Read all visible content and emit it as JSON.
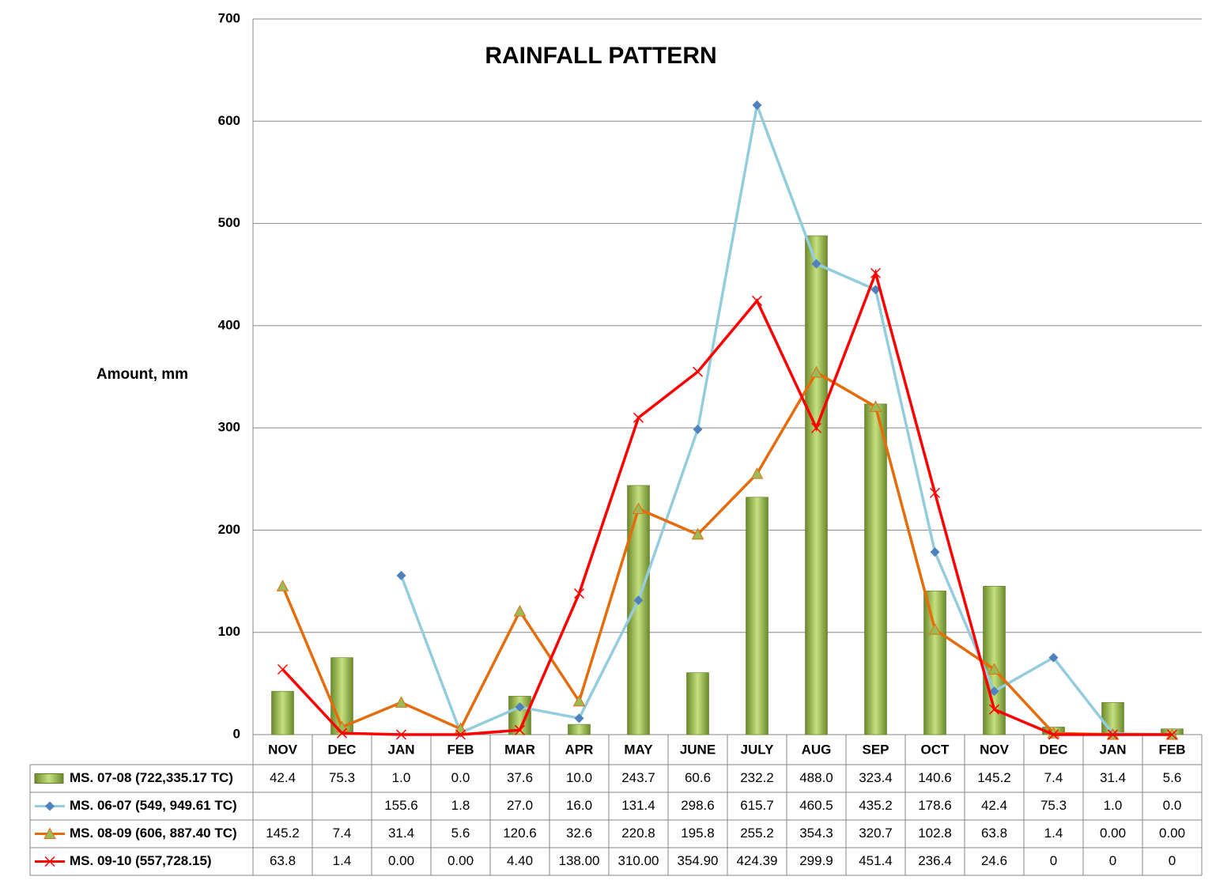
{
  "chart_data": {
    "type": "bar-line-table",
    "title": "RAINFALL PATTERN",
    "y_label": "Amount, mm",
    "categories": [
      "NOV",
      "DEC",
      "JAN",
      "FEB",
      "MAR",
      "APR",
      "MAY",
      "JUNE",
      "JULY",
      "AUG",
      "SEP",
      "OCT",
      "NOV",
      "DEC",
      "JAN",
      "FEB"
    ],
    "ylim": [
      0,
      700
    ],
    "yticks": [
      0,
      100,
      200,
      300,
      400,
      500,
      600,
      700
    ],
    "grid": true,
    "series": [
      {
        "name": "MS. 07-08 (722,335.17 TC)",
        "type": "bar",
        "color": "#9bbb59",
        "values": [
          42.4,
          75.3,
          1.0,
          0.0,
          37.6,
          10.0,
          243.7,
          60.6,
          232.2,
          488.0,
          323.4,
          140.6,
          145.2,
          7.4,
          31.4,
          5.6
        ],
        "value_labels": [
          "42.4",
          "75.3",
          "1.0",
          "0.0",
          "37.6",
          "10.0",
          "243.7",
          "60.6",
          "232.2",
          "488.0",
          "323.4",
          "140.6",
          "145.2",
          "7.4",
          "31.4",
          "5.6"
        ]
      },
      {
        "name": "MS. 06-07 (549, 949.61 TC)",
        "type": "line",
        "color": "#93cddd",
        "marker": "diamond",
        "marker_color": "#4f81bd",
        "values": [
          null,
          null,
          155.6,
          1.8,
          27.0,
          16.0,
          131.4,
          298.6,
          615.7,
          460.5,
          435.2,
          178.6,
          42.4,
          75.3,
          1.0,
          0.0
        ],
        "value_labels": [
          null,
          null,
          "155.6",
          "1.8",
          "27.0",
          "16.0",
          "131.4",
          "298.6",
          "615.7",
          "460.5",
          "435.2",
          "178.6",
          "42.4",
          "75.3",
          "1.0",
          "0.0"
        ]
      },
      {
        "name": "MS. 08-09 (606, 887.40 TC)",
        "type": "line",
        "color": "#e46c0a",
        "marker": "triangle",
        "marker_color": "#9bbb59",
        "values": [
          145.2,
          7.4,
          31.4,
          5.6,
          120.6,
          32.6,
          220.8,
          195.8,
          255.2,
          354.3,
          320.7,
          102.8,
          63.8,
          1.4,
          0.0,
          0.0
        ],
        "value_labels": [
          "145.2",
          "7.4",
          "31.4",
          "5.6",
          "120.6",
          "32.6",
          "220.8",
          "195.8",
          "255.2",
          "354.3",
          "320.7",
          "102.8",
          "63.8",
          "1.4",
          "0.00",
          "0.00"
        ]
      },
      {
        "name": "MS. 09-10  (557,728.15)",
        "type": "line",
        "color": "#ff0000",
        "marker": "x",
        "marker_color": "#ff0000",
        "values": [
          63.8,
          1.4,
          0.0,
          0.0,
          4.4,
          138.0,
          310.0,
          354.9,
          424.39,
          299.9,
          451.4,
          236.4,
          24.6,
          0,
          0,
          0
        ],
        "value_labels": [
          "63.8",
          "1.4",
          "0.00",
          "0.00",
          "4.40",
          "138.00",
          "310.00",
          "354.90",
          "424.39",
          "299.9",
          "451.4",
          "236.4",
          "24.6",
          "0",
          "0",
          "0"
        ]
      }
    ]
  }
}
